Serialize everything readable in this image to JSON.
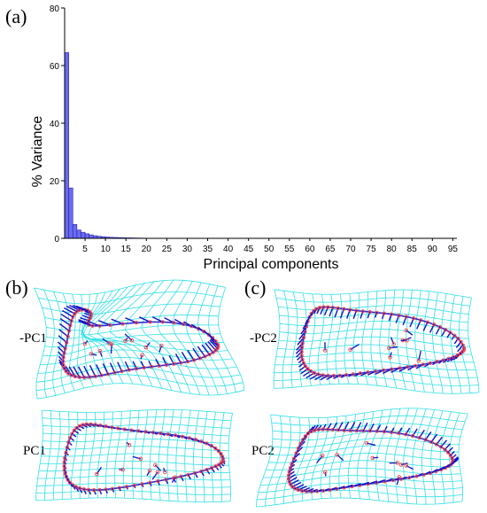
{
  "chart_data": [
    {
      "type": "bar",
      "panel_label": "(a)",
      "xlabel": "Principal components",
      "ylabel": "% Variance",
      "ylim": [
        0,
        80
      ],
      "xlim": [
        0,
        96
      ],
      "yticks": [
        0,
        20,
        40,
        60,
        80
      ],
      "xticks": [
        5,
        10,
        15,
        20,
        25,
        30,
        35,
        40,
        45,
        50,
        55,
        60,
        65,
        70,
        75,
        80,
        85,
        90,
        95
      ],
      "grid": false,
      "colors": {
        "bar_fill": "#6b6bf0",
        "bar_edge": "#2020b0",
        "axis": "#000000"
      },
      "x": [
        1,
        2,
        3,
        4,
        5,
        6,
        7,
        8,
        9,
        10,
        11,
        12,
        13,
        14,
        15,
        16,
        17,
        18,
        19,
        20
      ],
      "values": [
        64.5,
        17.5,
        4.8,
        2.9,
        2.1,
        1.6,
        1.2,
        0.9,
        0.7,
        0.55,
        0.45,
        0.35,
        0.3,
        0.25,
        0.2,
        0.17,
        0.15,
        0.12,
        0.1,
        0.08
      ]
    }
  ],
  "panels": {
    "b": {
      "label": "(b)",
      "top_label": "-PC1",
      "bottom_label": "PC1"
    },
    "c": {
      "label": "(c)",
      "top_label": "-PC2",
      "bottom_label": "PC2"
    }
  },
  "colors": {
    "grid": "#33e0e6",
    "vector": "#1010c8",
    "landmark": "#ff4040",
    "outline": "#2a2ad0"
  }
}
